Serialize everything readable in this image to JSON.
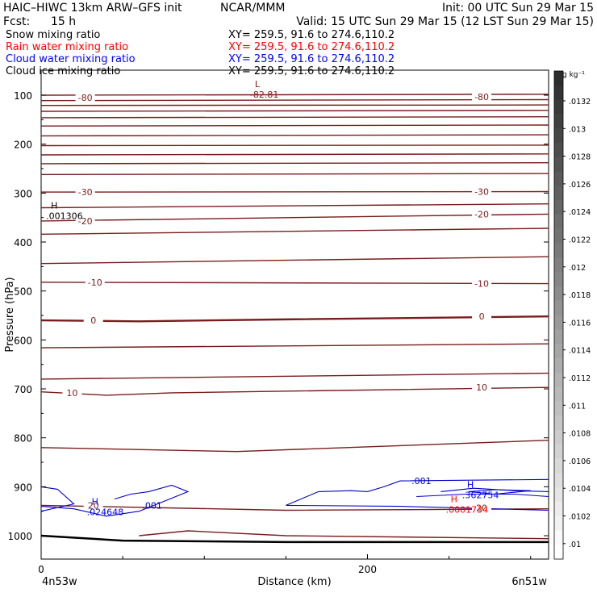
{
  "header": {
    "model": "HAIC–HIWC 13km ARW–GFS init",
    "org": "NCAR/MMM",
    "init": "Init: 00 UTC Sun 29 Mar 15",
    "fcst_label": "Fcst:",
    "fcst_value": "15 h",
    "valid": "Valid: 15 UTC Sun 29 Mar 15 (12 LST Sun 29 Mar 15)",
    "fields": [
      {
        "label": "Snow mixing ratio",
        "xy": "XY= 259.5, 91.6 to 274.6,110.2",
        "color": "#000000"
      },
      {
        "label": "Rain water mixing ratio",
        "xy": "XY= 259.5, 91.6 to 274.6,110.2",
        "color": "#ff0000"
      },
      {
        "label": "Cloud water mixing ratio",
        "xy": "XY= 259.5, 91.6 to 274.6,110.2",
        "color": "#0000ff"
      },
      {
        "label": "Cloud ice mixing ratio",
        "xy": "XY= 259.5, 91.6 to 274.6,110.2",
        "color": "#000000"
      }
    ]
  },
  "chart_data": {
    "type": "cross-section contour",
    "xlabel": "Distance (km)",
    "ylabel": "Pressure (hPa)",
    "xlim": [
      0,
      311
    ],
    "ylim": [
      1050,
      50
    ],
    "x_ticks": [
      0,
      200
    ],
    "y_ticks": [
      100,
      200,
      300,
      400,
      500,
      600,
      700,
      800,
      900,
      1000
    ],
    "x_endpoints": [
      "4n53w",
      "6n51w"
    ],
    "colorbar": {
      "unit": "g kg⁻¹",
      "ticks": [
        ".0132",
        ".013",
        ".0128",
        ".0126",
        ".0124",
        ".0122",
        ".012",
        ".0118",
        ".0116",
        ".0114",
        ".0112",
        ".011",
        ".0108",
        ".0106",
        ".0104",
        ".0102",
        ".01"
      ]
    },
    "temperature_labels": [
      {
        "text": "-80",
        "x": 27,
        "p": 105
      },
      {
        "text": "-80",
        "x": 270,
        "p": 103
      },
      {
        "text": "-30",
        "x": 27,
        "p": 298
      },
      {
        "text": "-30",
        "x": 270,
        "p": 297
      },
      {
        "text": "-20",
        "x": 27,
        "p": 357
      },
      {
        "text": "-20",
        "x": 270,
        "p": 343
      },
      {
        "text": "-10",
        "x": 33,
        "p": 482
      },
      {
        "text": "-10",
        "x": 270,
        "p": 485
      },
      {
        "text": "0",
        "x": 32,
        "p": 560
      },
      {
        "text": "0",
        "x": 270,
        "p": 552
      },
      {
        "text": "10",
        "x": 19,
        "p": 708
      },
      {
        "text": "10",
        "x": 270,
        "p": 697
      },
      {
        "text": "20",
        "x": 32,
        "p": 938
      },
      {
        "text": "20",
        "x": 270,
        "p": 943
      }
    ],
    "extrema": [
      {
        "type": "L",
        "text": "-82.81",
        "x": 130,
        "p": 92,
        "color": "#8b1a1a"
      },
      {
        "type": "H",
        "text": ".001306",
        "x": 5,
        "p": 340,
        "color": "#000000"
      },
      {
        "type": "H",
        "text": ".024648",
        "x": 30,
        "p": 945,
        "color": "#0000ff"
      },
      {
        "type": "H",
        "text": ".362754",
        "x": 260,
        "p": 910,
        "color": "#0000ff"
      },
      {
        "type": "H",
        "text": ".0001734",
        "x": 250,
        "p": 940,
        "color": "#ff0000"
      }
    ],
    "cloud_water_labels": [
      {
        "text": ".001",
        "x": 62,
        "p": 938
      },
      {
        "text": ".001",
        "x": 227,
        "p": 888
      }
    ]
  }
}
